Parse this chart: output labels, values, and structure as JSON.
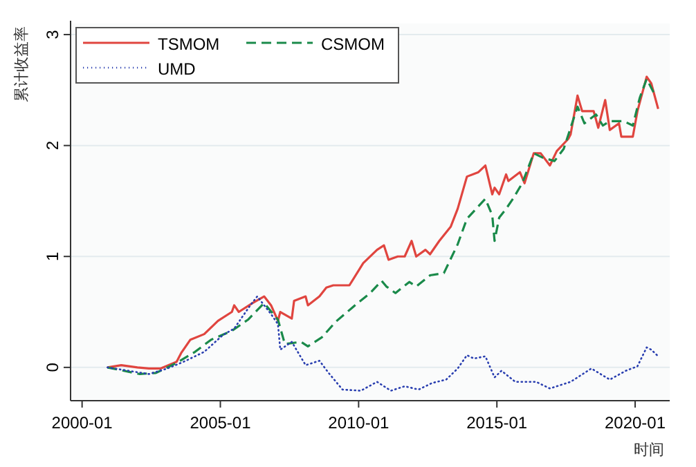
{
  "chart_data": {
    "type": "line",
    "ylabel": "累计收益率",
    "xlabel": "时间",
    "xlim": [
      "1999-08",
      "2021-04"
    ],
    "ylim": [
      -0.3,
      3.1
    ],
    "xticks": [
      "2000-01",
      "2005-01",
      "2010-01",
      "2015-01",
      "2020-01"
    ],
    "yticks": [
      0,
      1,
      2,
      3
    ],
    "grid": "y",
    "legend": "top left",
    "series": [
      {
        "name": "TSMOM",
        "color": "#e0453f",
        "line_style": "solid",
        "x": [
          "2000-12",
          "2001-06",
          "2002-01",
          "2002-06",
          "2002-11",
          "2003-06",
          "2003-08",
          "2003-12",
          "2004-06",
          "2004-12",
          "2005-06",
          "2005-07",
          "2005-09",
          "2006-03",
          "2006-08",
          "2006-11",
          "2007-02",
          "2007-03",
          "2007-08",
          "2007-09",
          "2008-02",
          "2008-03",
          "2008-08",
          "2008-11",
          "2009-02",
          "2009-09",
          "2010-03",
          "2010-09",
          "2010-12",
          "2011-02",
          "2011-06",
          "2011-09",
          "2011-12",
          "2012-02",
          "2012-06",
          "2012-08",
          "2012-12",
          "2013-05",
          "2013-08",
          "2013-12",
          "2014-05",
          "2014-08",
          "2014-11",
          "2014-12",
          "2015-02",
          "2015-05",
          "2015-06",
          "2015-11",
          "2016-01",
          "2016-05",
          "2016-08",
          "2016-12",
          "2017-03",
          "2017-08",
          "2017-09",
          "2017-12",
          "2018-02",
          "2018-07",
          "2018-09",
          "2018-12",
          "2019-02",
          "2019-06",
          "2019-07",
          "2019-12",
          "2020-02",
          "2020-06",
          "2020-08",
          "2020-11"
        ],
        "values": [
          0,
          0.02,
          0.0,
          -0.01,
          -0.01,
          0.05,
          0.13,
          0.25,
          0.3,
          0.42,
          0.5,
          0.56,
          0.5,
          0.58,
          0.64,
          0.56,
          0.42,
          0.5,
          0.44,
          0.6,
          0.64,
          0.56,
          0.64,
          0.72,
          0.74,
          0.74,
          0.94,
          1.06,
          1.1,
          0.97,
          1.0,
          1.0,
          1.14,
          1.0,
          1.06,
          1.02,
          1.14,
          1.27,
          1.43,
          1.72,
          1.76,
          1.82,
          1.56,
          1.62,
          1.56,
          1.74,
          1.68,
          1.76,
          1.66,
          1.93,
          1.93,
          1.82,
          1.95,
          2.06,
          2.1,
          2.45,
          2.31,
          2.31,
          2.16,
          2.41,
          2.14,
          2.2,
          2.08,
          2.08,
          2.31,
          2.62,
          2.56,
          2.33
        ]
      },
      {
        "name": "CSMOM",
        "color": "#1a8a4a",
        "line_style": "dashed",
        "x": [
          "2000-12",
          "2002-02",
          "2002-09",
          "2003-06",
          "2004-02",
          "2004-09",
          "2005-06",
          "2006-01",
          "2006-08",
          "2007-02",
          "2007-05",
          "2007-12",
          "2008-03",
          "2008-09",
          "2009-03",
          "2009-12",
          "2010-06",
          "2010-11",
          "2011-01",
          "2011-05",
          "2011-11",
          "2012-02",
          "2012-08",
          "2013-02",
          "2013-08",
          "2013-12",
          "2014-08",
          "2014-11",
          "2014-12",
          "2015-02",
          "2015-05",
          "2015-08",
          "2015-12",
          "2016-05",
          "2016-09",
          "2017-02",
          "2017-06",
          "2017-12",
          "2018-03",
          "2018-08",
          "2018-11",
          "2019-02",
          "2019-08",
          "2019-12",
          "2020-03",
          "2020-06",
          "2020-09"
        ],
        "values": [
          0,
          -0.06,
          -0.05,
          0.04,
          0.14,
          0.25,
          0.33,
          0.43,
          0.58,
          0.43,
          0.21,
          0.23,
          0.19,
          0.27,
          0.41,
          0.57,
          0.67,
          0.78,
          0.73,
          0.67,
          0.77,
          0.73,
          0.83,
          0.85,
          1.11,
          1.34,
          1.52,
          1.37,
          1.14,
          1.35,
          1.43,
          1.52,
          1.66,
          1.93,
          1.89,
          1.86,
          1.97,
          2.35,
          2.2,
          2.28,
          2.18,
          2.22,
          2.22,
          2.18,
          2.43,
          2.6,
          2.48
        ]
      },
      {
        "name": "UMD",
        "color": "#2a3fb0",
        "line_style": "dotted",
        "x": [
          "2000-12",
          "2001-09",
          "2002-06",
          "2003-02",
          "2003-09",
          "2004-06",
          "2005-02",
          "2005-07",
          "2006-02",
          "2006-05",
          "2006-11",
          "2007-02",
          "2007-03",
          "2007-08",
          "2008-02",
          "2008-08",
          "2008-12",
          "2009-06",
          "2010-02",
          "2010-09",
          "2011-03",
          "2011-09",
          "2012-03",
          "2012-09",
          "2013-03",
          "2013-08",
          "2013-12",
          "2014-03",
          "2014-08",
          "2014-12",
          "2015-03",
          "2015-09",
          "2016-06",
          "2016-12",
          "2017-09",
          "2018-06",
          "2019-02",
          "2019-09",
          "2020-02",
          "2020-06",
          "2020-08",
          "2020-11"
        ],
        "values": [
          0,
          -0.03,
          -0.06,
          -0.01,
          0.05,
          0.14,
          0.29,
          0.35,
          0.56,
          0.64,
          0.48,
          0.39,
          0.16,
          0.23,
          0.02,
          0.06,
          -0.05,
          -0.2,
          -0.21,
          -0.13,
          -0.21,
          -0.17,
          -0.2,
          -0.14,
          -0.11,
          -0.01,
          0.11,
          0.08,
          0.1,
          -0.09,
          -0.03,
          -0.13,
          -0.13,
          -0.19,
          -0.13,
          -0.01,
          -0.11,
          -0.03,
          0.01,
          0.18,
          0.16,
          0.1
        ]
      }
    ]
  }
}
